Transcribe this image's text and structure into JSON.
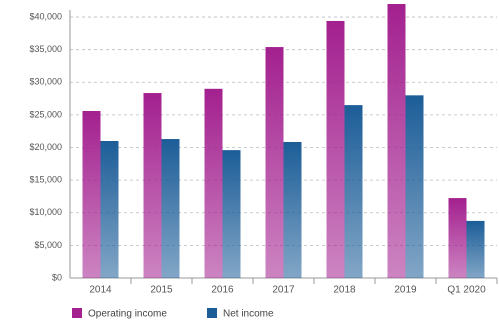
{
  "chart_data": {
    "type": "bar",
    "categories": [
      "2014",
      "2015",
      "2016",
      "2017",
      "2018",
      "2019",
      "Q1 2020"
    ],
    "series": [
      {
        "name": "Operating income",
        "color": "#a3208f",
        "values": [
          25600,
          28350,
          29000,
          35400,
          39400,
          42000,
          12250
        ]
      },
      {
        "name": "Net income",
        "color": "#1c5d98",
        "values": [
          21000,
          21300,
          19600,
          20850,
          26500,
          28000,
          8750
        ]
      }
    ],
    "ylim": [
      0,
      42000
    ],
    "yticks": [
      {
        "value": 0,
        "label": "$0"
      },
      {
        "value": 5000,
        "label": "$5,000"
      },
      {
        "value": 10000,
        "label": "$10,000"
      },
      {
        "value": 15000,
        "label": "$15,000"
      },
      {
        "value": 20000,
        "label": "$20,000"
      },
      {
        "value": 25000,
        "label": "$25,000"
      },
      {
        "value": 30000,
        "label": "$30,000"
      },
      {
        "value": 35000,
        "label": "$35,000"
      },
      {
        "value": 40000,
        "label": "$40,000"
      }
    ],
    "grid": true
  }
}
